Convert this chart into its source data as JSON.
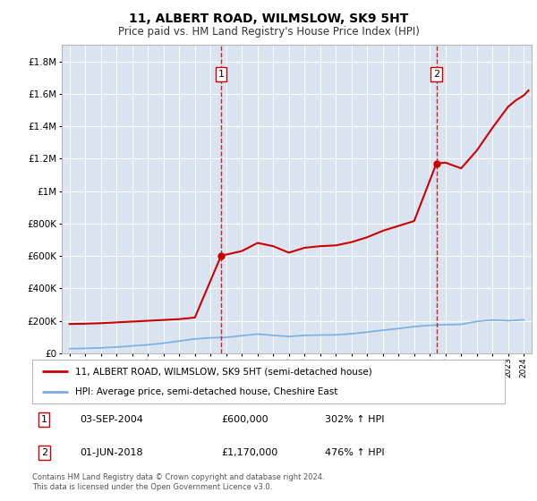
{
  "title": "11, ALBERT ROAD, WILMSLOW, SK9 5HT",
  "subtitle": "Price paid vs. HM Land Registry's House Price Index (HPI)",
  "legend_line1": "11, ALBERT ROAD, WILMSLOW, SK9 5HT (semi-detached house)",
  "legend_line2": "HPI: Average price, semi-detached house, Cheshire East",
  "footnote": "Contains HM Land Registry data © Crown copyright and database right 2024.\nThis data is licensed under the Open Government Licence v3.0.",
  "sale1_date": "03-SEP-2004",
  "sale1_price": "£600,000",
  "sale1_hpi": "302% ↑ HPI",
  "sale1_year": 2004.67,
  "sale1_value": 600000,
  "sale2_date": "01-JUN-2018",
  "sale2_price": "£1,170,000",
  "sale2_hpi": "476% ↑ HPI",
  "sale2_year": 2018.42,
  "sale2_value": 1170000,
  "ylim": [
    0,
    1900000
  ],
  "xlim": [
    1994.5,
    2024.5
  ],
  "plot_bg_color": "#d9e4f0",
  "red_line_color": "#cc0000",
  "blue_line_color": "#7aade0",
  "vline_color": "#cc0000",
  "hpi_years": [
    1995,
    1996,
    1997,
    1998,
    1999,
    2000,
    2001,
    2002,
    2003,
    2004,
    2005,
    2006,
    2007,
    2008,
    2009,
    2010,
    2011,
    2012,
    2013,
    2014,
    2015,
    2016,
    2017,
    2018,
    2019,
    2020,
    2021,
    2022,
    2023,
    2024
  ],
  "hpi_values": [
    28000,
    30000,
    33000,
    38000,
    45000,
    52000,
    62000,
    75000,
    88000,
    95000,
    98000,
    108000,
    118000,
    110000,
    103000,
    110000,
    112000,
    113000,
    120000,
    130000,
    142000,
    152000,
    164000,
    172000,
    176000,
    178000,
    196000,
    205000,
    200000,
    206000
  ],
  "price_years": [
    1995,
    1996,
    1997,
    1998,
    1999,
    2000,
    2001,
    2002,
    2003,
    2004.67,
    2005,
    2006,
    2007,
    2008,
    2009,
    2010,
    2011,
    2012,
    2013,
    2014,
    2015,
    2016,
    2017,
    2018.42,
    2019,
    2020,
    2021,
    2022,
    2023,
    2023.5,
    2024,
    2024.3
  ],
  "price_values": [
    180000,
    182000,
    185000,
    190000,
    195000,
    200000,
    205000,
    210000,
    220000,
    600000,
    608000,
    630000,
    680000,
    660000,
    620000,
    650000,
    660000,
    665000,
    685000,
    715000,
    755000,
    785000,
    815000,
    1170000,
    1175000,
    1140000,
    1250000,
    1390000,
    1520000,
    1560000,
    1590000,
    1620000
  ]
}
